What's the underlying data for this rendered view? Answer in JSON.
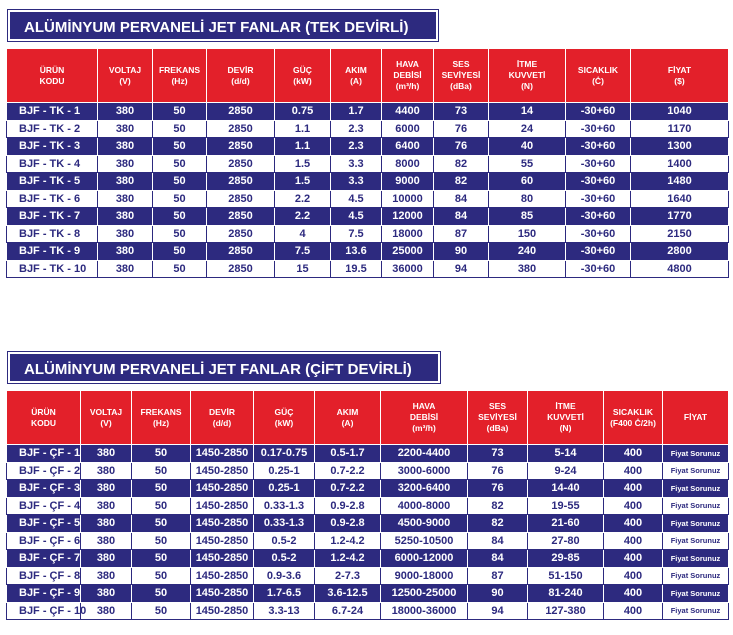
{
  "sections": [
    {
      "title": "ALÜMİNYUM PERVANELİ JET FANLAR (TEK DEVİRLİ)",
      "table": {
        "headers": [
          [
            "ÜRÜN",
            "KODU"
          ],
          [
            "VOLTAJ",
            "(V)"
          ],
          [
            "FREKANS",
            "(Hz)"
          ],
          [
            "DEVİR",
            "(d/d)"
          ],
          [
            "GÜÇ",
            "(kW)"
          ],
          [
            "AKIM",
            "(A)"
          ],
          [
            "HAVA",
            "DEBİSİ",
            "(m³/h)"
          ],
          [
            "SES",
            "SEVİYESİ",
            "(dBa)"
          ],
          [
            "İTME",
            "KUVVETİ",
            "(N)"
          ],
          [
            "SICAKLIK",
            "(C̊)"
          ],
          [
            "FİYAT",
            "($)"
          ]
        ],
        "rows": [
          [
            "BJF - TK - 1",
            "380",
            "50",
            "2850",
            "0.75",
            "1.7",
            "4400",
            "73",
            "14",
            "-30+60",
            "1040"
          ],
          [
            "BJF - TK - 2",
            "380",
            "50",
            "2850",
            "1.1",
            "2.3",
            "6000",
            "76",
            "24",
            "-30+60",
            "1170"
          ],
          [
            "BJF - TK - 3",
            "380",
            "50",
            "2850",
            "1.1",
            "2.3",
            "6400",
            "76",
            "40",
            "-30+60",
            "1300"
          ],
          [
            "BJF - TK - 4",
            "380",
            "50",
            "2850",
            "1.5",
            "3.3",
            "8000",
            "82",
            "55",
            "-30+60",
            "1400"
          ],
          [
            "BJF - TK - 5",
            "380",
            "50",
            "2850",
            "1.5",
            "3.3",
            "9000",
            "82",
            "60",
            "-30+60",
            "1480"
          ],
          [
            "BJF - TK - 6",
            "380",
            "50",
            "2850",
            "2.2",
            "4.5",
            "10000",
            "84",
            "80",
            "-30+60",
            "1640"
          ],
          [
            "BJF - TK - 7",
            "380",
            "50",
            "2850",
            "2.2",
            "4.5",
            "12000",
            "84",
            "85",
            "-30+60",
            "1770"
          ],
          [
            "BJF - TK - 8",
            "380",
            "50",
            "2850",
            "4",
            "7.5",
            "18000",
            "87",
            "150",
            "-30+60",
            "2150"
          ],
          [
            "BJF - TK - 9",
            "380",
            "50",
            "2850",
            "7.5",
            "13.6",
            "25000",
            "90",
            "240",
            "-30+60",
            "2800"
          ],
          [
            "BJF - TK - 10",
            "380",
            "50",
            "2850",
            "15",
            "19.5",
            "36000",
            "94",
            "380",
            "-30+60",
            "4800"
          ]
        ]
      }
    },
    {
      "title": "ALÜMİNYUM PERVANELİ JET FANLAR (ÇİFT DEVİRLİ)",
      "table": {
        "headers": [
          [
            "ÜRÜN",
            "KODU"
          ],
          [
            "VOLTAJ",
            "(V)"
          ],
          [
            "FREKANS",
            "(Hz)"
          ],
          [
            "DEVİR",
            "(d/d)"
          ],
          [
            "GÜÇ",
            "(kW)"
          ],
          [
            "AKIM",
            "(A)"
          ],
          [
            "HAVA",
            "DEBİSİ",
            "(m³/h)"
          ],
          [
            "SES",
            "SEVİYESİ",
            "(dBa)"
          ],
          [
            "İTME",
            "KUVVETİ",
            "(N)"
          ],
          [
            "SICAKLIK",
            "(F400 C̊/2h)"
          ],
          [
            "FİYAT"
          ]
        ],
        "rows": [
          [
            "BJF - ÇF - 1",
            "380",
            "50",
            "1450-2850",
            "0.17-0.75",
            "0.5-1.7",
            "2200-4400",
            "73",
            "5-14",
            "400",
            "Fiyat Sorunuz"
          ],
          [
            "BJF - ÇF - 2",
            "380",
            "50",
            "1450-2850",
            "0.25-1",
            "0.7-2.2",
            "3000-6000",
            "76",
            "9-24",
            "400",
            "Fiyat Sorunuz"
          ],
          [
            "BJF - ÇF - 3",
            "380",
            "50",
            "1450-2850",
            "0.25-1",
            "0.7-2.2",
            "3200-6400",
            "76",
            "14-40",
            "400",
            "Fiyat Sorunuz"
          ],
          [
            "BJF - ÇF - 4",
            "380",
            "50",
            "1450-2850",
            "0.33-1.3",
            "0.9-2.8",
            "4000-8000",
            "82",
            "19-55",
            "400",
            "Fiyat Sorunuz"
          ],
          [
            "BJF - ÇF - 5",
            "380",
            "50",
            "1450-2850",
            "0.33-1.3",
            "0.9-2.8",
            "4500-9000",
            "82",
            "21-60",
            "400",
            "Fiyat Sorunuz"
          ],
          [
            "BJF - ÇF - 6",
            "380",
            "50",
            "1450-2850",
            "0.5-2",
            "1.2-4.2",
            "5250-10500",
            "84",
            "27-80",
            "400",
            "Fiyat Sorunuz"
          ],
          [
            "BJF - ÇF - 7",
            "380",
            "50",
            "1450-2850",
            "0.5-2",
            "1.2-4.2",
            "6000-12000",
            "84",
            "29-85",
            "400",
            "Fiyat Sorunuz"
          ],
          [
            "BJF - ÇF - 8",
            "380",
            "50",
            "1450-2850",
            "0.9-3.6",
            "2-7.3",
            "9000-18000",
            "87",
            "51-150",
            "400",
            "Fiyat Sorunuz"
          ],
          [
            "BJF - ÇF - 9",
            "380",
            "50",
            "1450-2850",
            "1.7-6.5",
            "3.6-12.5",
            "12500-25000",
            "90",
            "81-240",
            "400",
            "Fiyat Sorunuz"
          ],
          [
            "BJF - ÇF - 10",
            "380",
            "50",
            "1450-2850",
            "3.3-13",
            "6.7-24",
            "18000-36000",
            "94",
            "127-380",
            "400",
            "Fiyat Sorunuz"
          ]
        ]
      }
    }
  ]
}
